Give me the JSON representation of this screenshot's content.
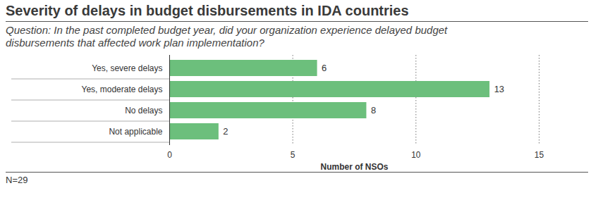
{
  "chart_data": {
    "type": "bar",
    "orientation": "horizontal",
    "title": "Severity of delays in budget disbursements in IDA countries",
    "subtitle": "Question: In the past completed budget year, did your organization experience delayed budget disbursements that affected work plan implementation?",
    "categories": [
      "Yes, severe delays",
      "Yes, moderate delays",
      "No delays",
      "Not applicable"
    ],
    "values": [
      6,
      13,
      8,
      2
    ],
    "color": "#6cbf7c",
    "xlim": [
      0,
      15
    ],
    "xticks": [
      0,
      5,
      10,
      15
    ],
    "xlabel": "Number of NSOs",
    "grid": true,
    "data_labels": true,
    "note": "N=29"
  }
}
